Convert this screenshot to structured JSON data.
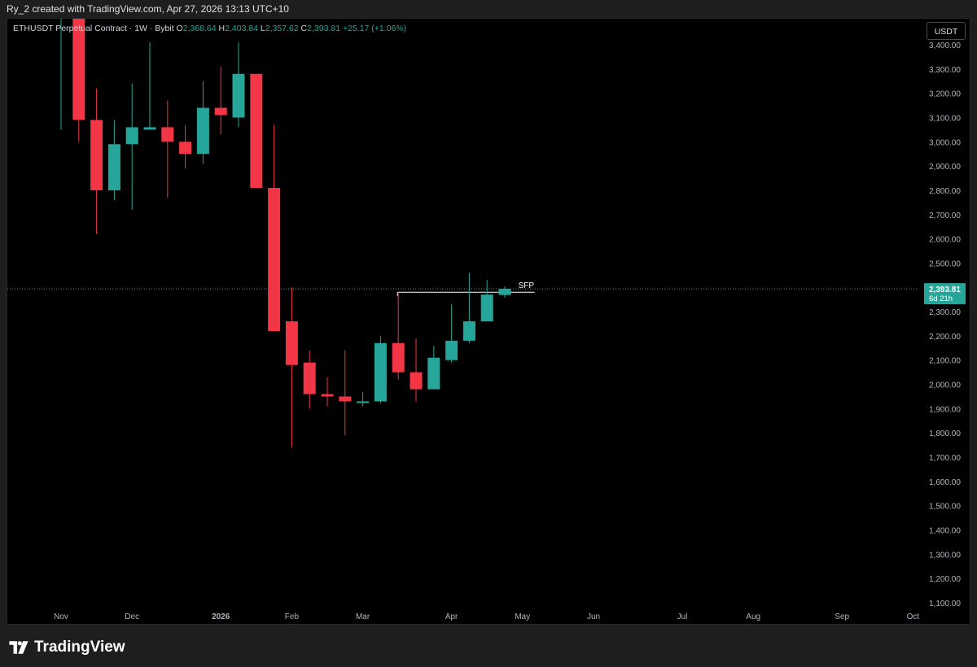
{
  "header": {
    "attribution": "Ry_2 created with TradingView.com, Apr 27, 2026 13:13 UTC+10"
  },
  "legend": {
    "symbol": "ETHUSDT Perpetual Contract · 1W · Bybit",
    "open_label": "O",
    "open": "2,368.64",
    "high_label": "H",
    "high": "2,403.84",
    "low_label": "L",
    "low": "2,357.62",
    "close_label": "C",
    "close": "2,393.81",
    "change": "+25.17 (+1.06%)"
  },
  "currency_button": "USDT",
  "footer": {
    "brand": "TradingView"
  },
  "colors": {
    "up": "#26a69a",
    "down": "#f23645",
    "background": "#000000",
    "axis_text": "#b2b5be",
    "annotation": "#ffffff"
  },
  "chart_data": {
    "type": "candlestick",
    "timeframe": "1W",
    "ylim": [
      1100,
      3450
    ],
    "y_ticks": [
      "3,400.00",
      "3,300.00",
      "3,200.00",
      "3,100.00",
      "3,000.00",
      "2,900.00",
      "2,800.00",
      "2,700.00",
      "2,600.00",
      "2,500.00",
      "2,400.00",
      "2,300.00",
      "2,200.00",
      "2,100.00",
      "2,000.00",
      "1,900.00",
      "1,800.00",
      "1,700.00",
      "1,600.00",
      "1,500.00",
      "1,400.00",
      "1,300.00",
      "1,200.00",
      "1,100.00"
    ],
    "x_ticks": [
      {
        "label": "Nov",
        "week": 0
      },
      {
        "label": "Dec",
        "week": 4
      },
      {
        "label": "2026",
        "week": 9
      },
      {
        "label": "Feb",
        "week": 13
      },
      {
        "label": "Mar",
        "week": 17
      },
      {
        "label": "Apr",
        "week": 22
      },
      {
        "label": "May",
        "week": 26
      },
      {
        "label": "Jun",
        "week": 30
      },
      {
        "label": "Jul",
        "week": 35
      },
      {
        "label": "Aug",
        "week": 39
      },
      {
        "label": "Sep",
        "week": 44
      },
      {
        "label": "Oct",
        "week": 48
      }
    ],
    "candles": [
      {
        "o": 3700,
        "h": 3800,
        "l": 3050,
        "c": 3780
      },
      {
        "o": 3850,
        "h": 3900,
        "l": 3000,
        "c": 3090
      },
      {
        "o": 3090,
        "h": 3220,
        "l": 2620,
        "c": 2800
      },
      {
        "o": 2800,
        "h": 3090,
        "l": 2760,
        "c": 2990
      },
      {
        "o": 2990,
        "h": 3240,
        "l": 2720,
        "c": 3060
      },
      {
        "o": 3050,
        "h": 3410,
        "l": 3050,
        "c": 3060
      },
      {
        "o": 3060,
        "h": 3170,
        "l": 2770,
        "c": 3000
      },
      {
        "o": 3000,
        "h": 3070,
        "l": 2890,
        "c": 2950
      },
      {
        "o": 2950,
        "h": 3250,
        "l": 2910,
        "c": 3140
      },
      {
        "o": 3140,
        "h": 3310,
        "l": 3030,
        "c": 3110
      },
      {
        "o": 3100,
        "h": 3410,
        "l": 3060,
        "c": 3280
      },
      {
        "o": 3280,
        "h": 3260,
        "l": 2810,
        "c": 2810
      },
      {
        "o": 2810,
        "h": 3070,
        "l": 2220,
        "c": 2220
      },
      {
        "o": 2260,
        "h": 2400,
        "l": 1740,
        "c": 2080
      },
      {
        "o": 2090,
        "h": 2140,
        "l": 1900,
        "c": 1960
      },
      {
        "o": 1960,
        "h": 2030,
        "l": 1910,
        "c": 1950
      },
      {
        "o": 1950,
        "h": 2140,
        "l": 1790,
        "c": 1930
      },
      {
        "o": 1930,
        "h": 1970,
        "l": 1910,
        "c": 1930
      },
      {
        "o": 1930,
        "h": 2200,
        "l": 1920,
        "c": 2170
      },
      {
        "o": 2170,
        "h": 2380,
        "l": 2020,
        "c": 2050
      },
      {
        "o": 2050,
        "h": 2190,
        "l": 1930,
        "c": 1980
      },
      {
        "o": 1980,
        "h": 2160,
        "l": 1980,
        "c": 2110
      },
      {
        "o": 2100,
        "h": 2330,
        "l": 2090,
        "c": 2180
      },
      {
        "o": 2180,
        "h": 2460,
        "l": 2170,
        "c": 2260
      },
      {
        "o": 2260,
        "h": 2430,
        "l": 2260,
        "c": 2370
      },
      {
        "o": 2368.64,
        "h": 2403.84,
        "l": 2357.62,
        "c": 2393.81
      }
    ],
    "current_price": {
      "value": 2393.81,
      "label": "2,393.81",
      "countdown": "6d 21h"
    },
    "annotation": {
      "text": "SFP",
      "level": 2380,
      "from_week": 19,
      "to_week": 27
    }
  }
}
